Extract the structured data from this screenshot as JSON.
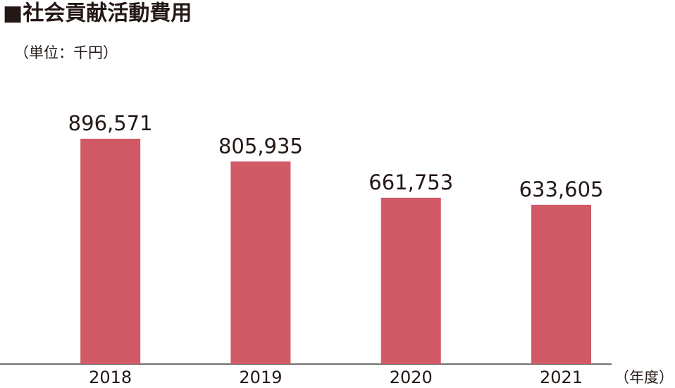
{
  "chart_data": {
    "type": "bar",
    "title": "■社会貢献活動費用",
    "subtitle": "（単位：千円）",
    "x_label": "（年度）",
    "categories": [
      "2018",
      "2019",
      "2020",
      "2021"
    ],
    "values": [
      896571,
      805935,
      661753,
      633605
    ],
    "value_labels": [
      "896,571",
      "805,935",
      "661,753",
      "633,605"
    ],
    "color": "#d05a66"
  }
}
